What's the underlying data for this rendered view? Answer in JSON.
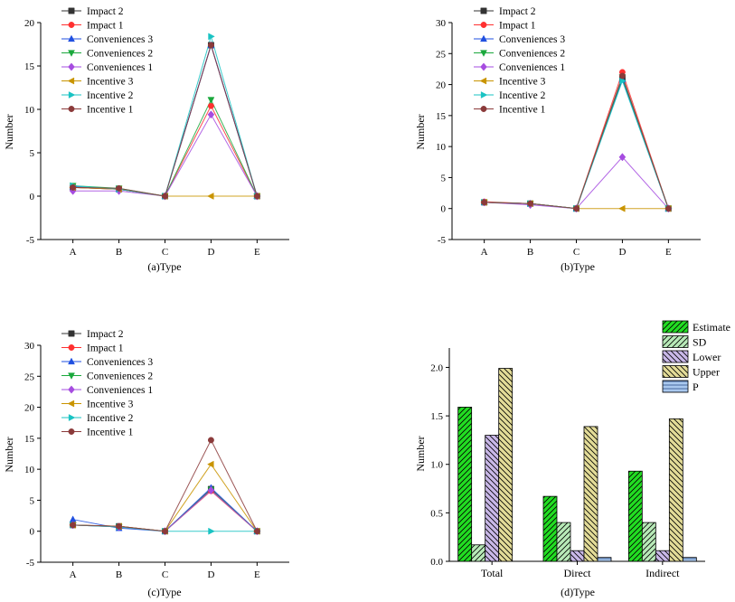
{
  "chart_data": [
    {
      "type": "line",
      "caption": "(a)Type",
      "xlabel": "",
      "ylabel": "Number",
      "categories": [
        "A",
        "B",
        "C",
        "D",
        "E"
      ],
      "ylim": [
        -5,
        20
      ],
      "yticks": [
        -5,
        0,
        5,
        10,
        15,
        20
      ],
      "legend_position": "top-left",
      "series": [
        {
          "name": "Impact 2",
          "marker": "square",
          "color": "#333333",
          "values": [
            1.0,
            0.8,
            0.0,
            17.4,
            0.0
          ]
        },
        {
          "name": "Impact 1",
          "marker": "circle",
          "color": "#ff3030",
          "values": [
            1.0,
            0.8,
            0.0,
            10.4,
            0.0
          ]
        },
        {
          "name": "Conveniences 3",
          "marker": "triangle-up",
          "color": "#1f4fe0",
          "values": [
            1.1,
            0.8,
            0.0,
            17.4,
            0.0
          ]
        },
        {
          "name": "Conveniences 2",
          "marker": "triangle-down",
          "color": "#1aa83c",
          "values": [
            1.2,
            0.9,
            0.0,
            11.1,
            0.0
          ]
        },
        {
          "name": "Conveniences 1",
          "marker": "diamond",
          "color": "#a64ce0",
          "values": [
            0.6,
            0.6,
            0.0,
            9.4,
            0.0
          ]
        },
        {
          "name": "Incentive 3",
          "marker": "triangle-left",
          "color": "#c99400",
          "values": [
            1.0,
            0.8,
            0.0,
            0.0,
            0.0
          ]
        },
        {
          "name": "Incentive 2",
          "marker": "triangle-right",
          "color": "#19c3c3",
          "values": [
            1.2,
            0.8,
            0.0,
            18.4,
            0.0
          ]
        },
        {
          "name": "Incentive 1",
          "marker": "circle",
          "color": "#8b3a3a",
          "values": [
            1.0,
            0.9,
            0.0,
            17.4,
            0.0
          ]
        }
      ]
    },
    {
      "type": "line",
      "caption": "(b)Type",
      "xlabel": "",
      "ylabel": "Number",
      "categories": [
        "A",
        "B",
        "C",
        "D",
        "E"
      ],
      "ylim": [
        -5,
        30
      ],
      "yticks": [
        -5,
        0,
        5,
        10,
        15,
        20,
        25,
        30
      ],
      "legend_position": "top-left",
      "series": [
        {
          "name": "Impact 2",
          "marker": "square",
          "color": "#333333",
          "values": [
            1.0,
            0.8,
            0.0,
            21.0,
            0.0
          ]
        },
        {
          "name": "Impact 1",
          "marker": "circle",
          "color": "#ff3030",
          "values": [
            1.1,
            0.8,
            0.0,
            22.0,
            0.0
          ]
        },
        {
          "name": "Conveniences 3",
          "marker": "triangle-up",
          "color": "#1f4fe0",
          "values": [
            1.0,
            0.8,
            0.0,
            20.8,
            0.0
          ]
        },
        {
          "name": "Conveniences 2",
          "marker": "triangle-down",
          "color": "#1aa83c",
          "values": [
            1.0,
            0.8,
            0.0,
            21.2,
            0.0
          ]
        },
        {
          "name": "Conveniences 1",
          "marker": "diamond",
          "color": "#a64ce0",
          "values": [
            1.0,
            0.6,
            0.0,
            8.3,
            0.0
          ]
        },
        {
          "name": "Incentive 3",
          "marker": "triangle-left",
          "color": "#c99400",
          "values": [
            1.0,
            0.8,
            0.0,
            0.0,
            0.0
          ]
        },
        {
          "name": "Incentive 2",
          "marker": "triangle-right",
          "color": "#19c3c3",
          "values": [
            1.0,
            0.8,
            0.0,
            20.6,
            0.0
          ]
        },
        {
          "name": "Incentive 1",
          "marker": "circle",
          "color": "#8b3a3a",
          "values": [
            1.0,
            0.8,
            0.0,
            21.4,
            0.0
          ]
        }
      ]
    },
    {
      "type": "line",
      "caption": "(c)Type",
      "xlabel": "",
      "ylabel": "Number",
      "categories": [
        "A",
        "B",
        "C",
        "D",
        "E"
      ],
      "ylim": [
        -5,
        30
      ],
      "yticks": [
        -5,
        0,
        5,
        10,
        15,
        20,
        25,
        30
      ],
      "legend_position": "top-left",
      "series": [
        {
          "name": "Impact 2",
          "marker": "square",
          "color": "#333333",
          "values": [
            1.0,
            0.8,
            0.0,
            6.8,
            0.0
          ]
        },
        {
          "name": "Impact 1",
          "marker": "circle",
          "color": "#ff3030",
          "values": [
            1.0,
            0.8,
            0.0,
            6.5,
            0.0
          ]
        },
        {
          "name": "Conveniences 3",
          "marker": "triangle-up",
          "color": "#1f4fe0",
          "values": [
            1.9,
            0.5,
            0.0,
            7.0,
            0.0
          ]
        },
        {
          "name": "Conveniences 2",
          "marker": "triangle-down",
          "color": "#1aa83c",
          "values": [
            1.0,
            0.7,
            0.0,
            6.7,
            0.0
          ]
        },
        {
          "name": "Conveniences 1",
          "marker": "diamond",
          "color": "#a64ce0",
          "values": [
            1.0,
            0.7,
            0.0,
            6.6,
            0.0
          ]
        },
        {
          "name": "Incentive 3",
          "marker": "triangle-left",
          "color": "#c99400",
          "values": [
            1.0,
            0.8,
            0.0,
            10.8,
            0.0
          ]
        },
        {
          "name": "Incentive 2",
          "marker": "triangle-right",
          "color": "#19c3c3",
          "values": [
            1.0,
            0.7,
            0.0,
            0.0,
            0.0
          ]
        },
        {
          "name": "Incentive 1",
          "marker": "circle",
          "color": "#8b3a3a",
          "values": [
            1.0,
            0.8,
            0.0,
            14.7,
            0.0
          ]
        }
      ]
    },
    {
      "type": "bar",
      "caption": "(d)Type",
      "xlabel": "",
      "ylabel": "Number",
      "categories": [
        "Total",
        "Direct",
        "Indirect"
      ],
      "ylim": [
        0,
        2.2
      ],
      "yticks": [
        0.0,
        0.5,
        1.0,
        1.5,
        2.0
      ],
      "legend_position": "top-right",
      "series": [
        {
          "name": "Estimate",
          "color": "#22dd22",
          "hatch": "diag-right",
          "values": [
            1.59,
            0.67,
            0.93
          ]
        },
        {
          "name": "SD",
          "color": "#b8eab8",
          "hatch": "diag-right",
          "values": [
            0.17,
            0.4,
            0.4
          ]
        },
        {
          "name": "Lower",
          "color": "#c9b8e8",
          "hatch": "diag-left",
          "values": [
            1.3,
            0.11,
            0.11
          ]
        },
        {
          "name": "Upper",
          "color": "#e3dc98",
          "hatch": "diag-left",
          "values": [
            1.99,
            1.39,
            1.47
          ]
        },
        {
          "name": "P",
          "color": "#a9c8ee",
          "hatch": "horizontal",
          "values": [
            0.0,
            0.04,
            0.04
          ]
        }
      ]
    }
  ]
}
